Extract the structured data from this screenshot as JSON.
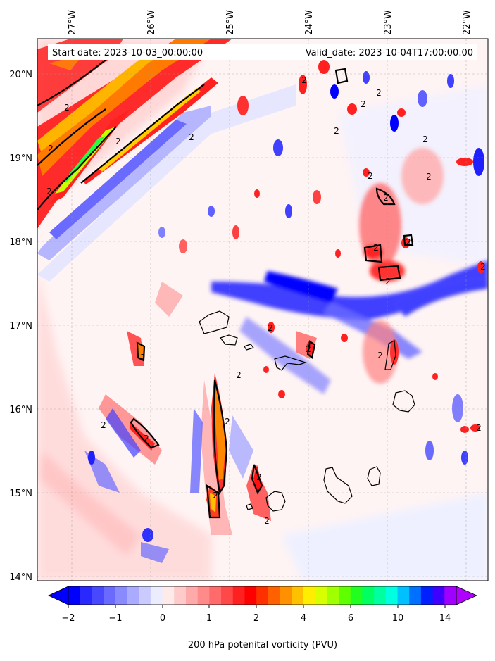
{
  "map": {
    "start_label": "Start date: 2023-10-03_00:00:00",
    "valid_label": "Valid_date: 2023-10-04T17:00:00.00",
    "lon_ticks": [
      "27°W",
      "26°W",
      "25°W",
      "24°W",
      "23°W",
      "22°W"
    ],
    "lat_ticks": [
      "20°N",
      "19°N",
      "18°N",
      "17°N",
      "16°N",
      "15°N",
      "14°N"
    ],
    "contour_label": "2",
    "extent": {
      "lon": [
        -27.5,
        -21.7
      ],
      "lat": [
        13.95,
        20.4
      ]
    },
    "field": "200 hPa potential vorticity",
    "contour_level_pvu": 2
  },
  "colorbar": {
    "label": "200 hPa potenital vorticity (PVU)",
    "tick_labels": [
      "−2",
      "−1",
      "0",
      "1",
      "2",
      "4",
      "6",
      "10",
      "14"
    ],
    "colors": [
      "#0000ff",
      "#2828ff",
      "#4848ff",
      "#6a6aff",
      "#8a8aff",
      "#aaaaff",
      "#cacaff",
      "#ececff",
      "#ffeaea",
      "#ffcaca",
      "#ffaaaa",
      "#ff8a8a",
      "#ff6a6a",
      "#ff4848",
      "#ff2020",
      "#ff0000",
      "#ff3000",
      "#ff6000",
      "#ff9000",
      "#ffc000",
      "#ffee00",
      "#d8ff00",
      "#a0ff00",
      "#60ff00",
      "#20ff20",
      "#00ff60",
      "#00ffa0",
      "#00ffe0",
      "#00c0ff",
      "#0070ff",
      "#0020ff",
      "#4000ff",
      "#a000ff"
    ],
    "under_color": "#0000ff",
    "over_color": "#b000ff"
  }
}
